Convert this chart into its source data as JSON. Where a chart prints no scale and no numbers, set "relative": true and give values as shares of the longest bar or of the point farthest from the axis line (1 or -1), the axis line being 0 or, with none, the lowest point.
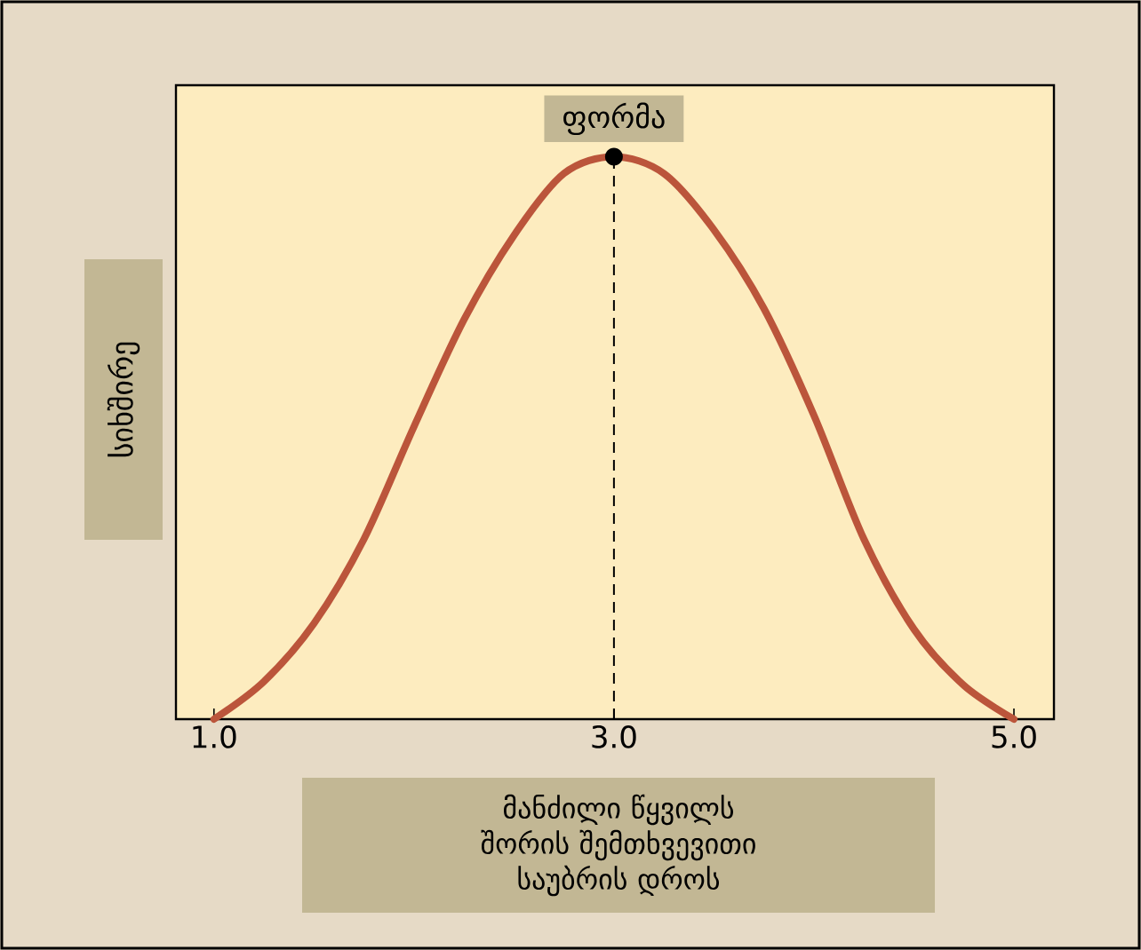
{
  "chart_data": {
    "type": "line",
    "relative": true,
    "xlabel": "მანძილი წყვილს შორის შემთხვევითი საუბრის დროს",
    "ylabel": "სიხშირე",
    "xlim": [
      0.81,
      5.2
    ],
    "xticks": [
      {
        "value": 1,
        "label": "1.0"
      },
      {
        "value": 3,
        "label": "3.0"
      },
      {
        "value": 5,
        "label": "5.0"
      }
    ],
    "grid": false,
    "series": [
      {
        "color": "#bb553b",
        "x": [
          1.0,
          1.25,
          1.5,
          1.75,
          2.0,
          2.25,
          2.5,
          2.75,
          3.0,
          3.25,
          3.5,
          3.75,
          4.0,
          4.25,
          4.5,
          4.75,
          5.0
        ],
        "values": [
          0.0,
          0.067,
          0.17,
          0.32,
          0.52,
          0.71,
          0.86,
          0.97,
          1.0,
          0.97,
          0.87,
          0.73,
          0.54,
          0.32,
          0.16,
          0.06,
          0.0
        ]
      }
    ],
    "ref_lines": [
      {
        "axis": "x",
        "value": 3.0,
        "color": "#000000",
        "line_style": "dashed"
      }
    ],
    "annotations": [
      {
        "text": "ფორმა",
        "x": 3.0,
        "y": 1.0
      }
    ]
  }
}
